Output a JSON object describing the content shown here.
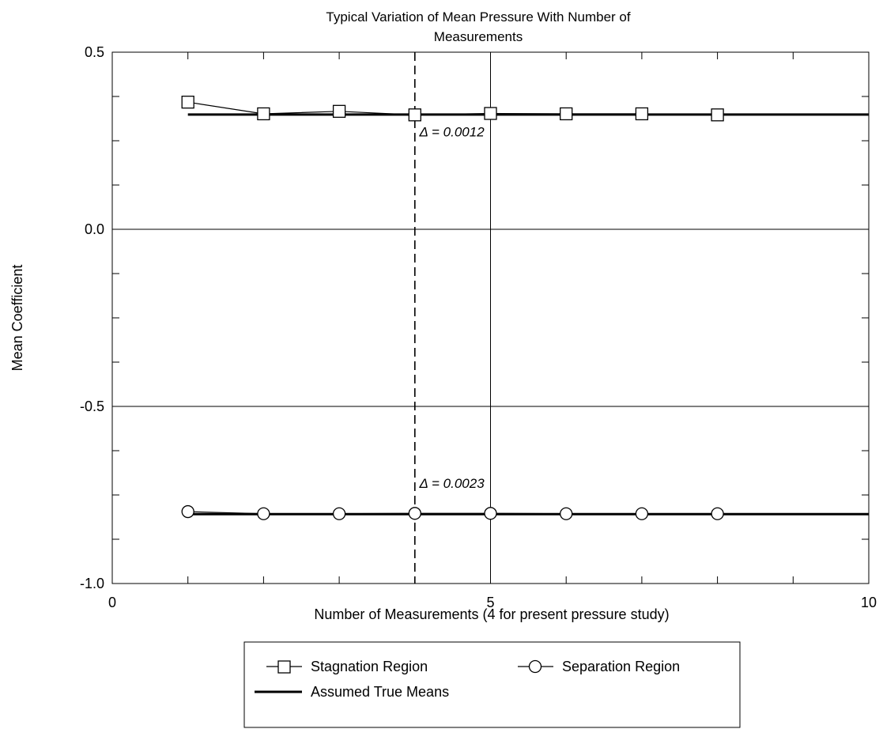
{
  "chart_data": {
    "type": "line",
    "title": "Typical Variation of Mean Pressure With Number of Measurements",
    "title_lines": [
      "Typical Variation of Mean Pressure With Number of",
      "Measurements"
    ],
    "xlabel": "Number of Measurements (4 for present pressure study)",
    "ylabel": "Mean Coefficient",
    "xlim": [
      0,
      10
    ],
    "ylim": [
      -1.0,
      0.5
    ],
    "xticks": [
      {
        "value": 0,
        "label": "0"
      },
      {
        "value": 5,
        "label": "5"
      },
      {
        "value": 10,
        "label": "10"
      }
    ],
    "yticks": [
      {
        "value": 0.5,
        "label": "0.5"
      },
      {
        "value": 0.0,
        "label": "0.0"
      },
      {
        "value": -0.5,
        "label": "-0.5"
      },
      {
        "value": -1.0,
        "label": "-1.0"
      }
    ],
    "grid": true,
    "series": [
      {
        "name": "Stagnation Region",
        "marker": "square",
        "x": [
          1,
          2,
          3,
          4,
          5,
          6,
          7,
          8
        ],
        "y": [
          0.359,
          0.326,
          0.333,
          0.323,
          0.327,
          0.326,
          0.326,
          0.323
        ]
      },
      {
        "name": "Separation Region",
        "marker": "circle",
        "x": [
          1,
          2,
          3,
          4,
          5,
          6,
          7,
          8
        ],
        "y": [
          -0.797,
          -0.803,
          -0.803,
          -0.802,
          -0.802,
          -0.803,
          -0.803,
          -0.803
        ]
      }
    ],
    "true_means": {
      "name": "Assumed True Means",
      "x_range": [
        1,
        10
      ],
      "values": [
        0.324,
        -0.804
      ]
    },
    "reference_line": {
      "x": 4,
      "style": "dashed"
    },
    "annotations": [
      {
        "text": "Δ = 0.0012",
        "x": 4.06,
        "y": 0.262
      },
      {
        "text": "Δ = 0.0023",
        "x": 4.06,
        "y": -0.73
      }
    ],
    "legend": {
      "position": "bottom",
      "entries": [
        "Stagnation Region",
        "Separation Region",
        "Assumed True Means"
      ]
    }
  }
}
